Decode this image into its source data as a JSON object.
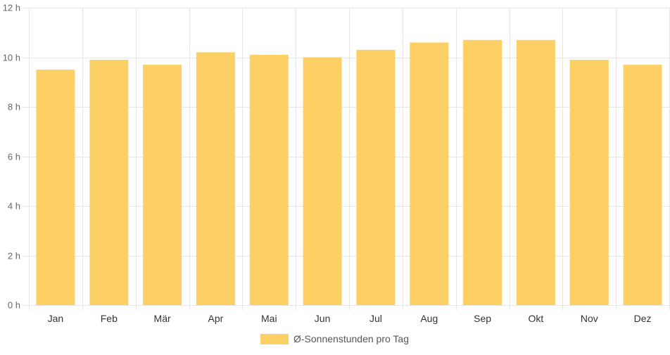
{
  "chart_data": {
    "type": "bar",
    "categories": [
      "Jan",
      "Feb",
      "Mär",
      "Apr",
      "Mai",
      "Jun",
      "Jul",
      "Aug",
      "Sep",
      "Okt",
      "Nov",
      "Dez"
    ],
    "series": [
      {
        "name": "Ø-Sonnenstunden pro Tag",
        "values": [
          9.5,
          9.9,
          9.7,
          10.2,
          10.1,
          10.0,
          10.3,
          10.6,
          10.7,
          10.7,
          9.9,
          9.7
        ],
        "color": "#fdd066"
      }
    ],
    "ylim": [
      0,
      12
    ],
    "y_ticks": [
      0,
      2,
      4,
      6,
      8,
      10,
      12
    ],
    "y_tick_suffix": " h",
    "grid": true,
    "legend_position": "bottom"
  }
}
